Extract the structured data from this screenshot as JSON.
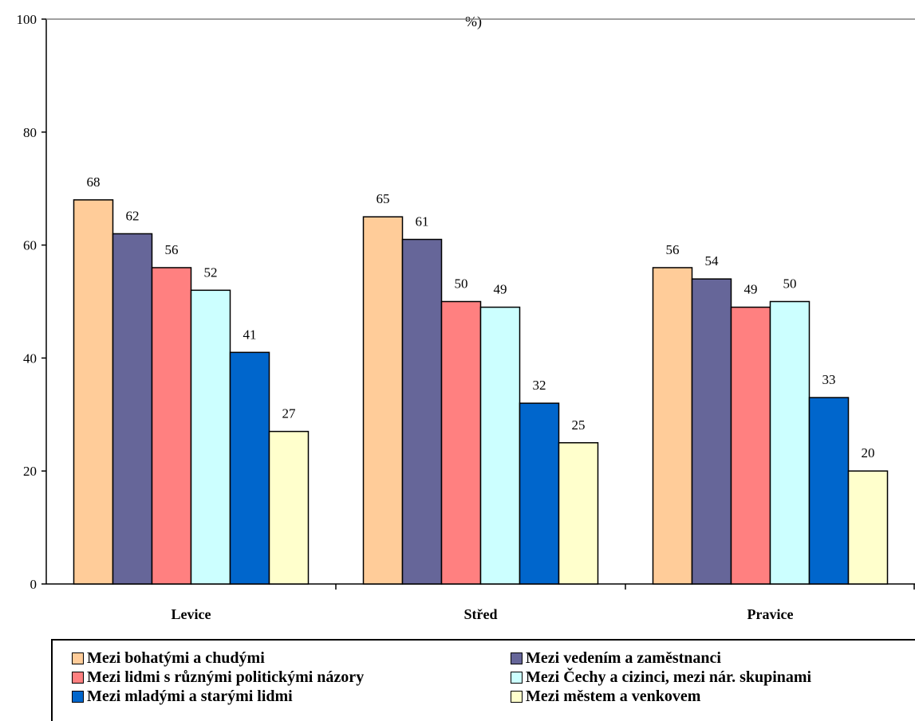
{
  "chart_data": {
    "type": "bar",
    "title": "%)",
    "categories": [
      "Levice",
      "Střed",
      "Pravice"
    ],
    "ylim": [
      0,
      100
    ],
    "yticks": [
      "0",
      "20",
      "40",
      "60",
      "80",
      "100"
    ],
    "grid": false,
    "legend_position": "bottom",
    "series": [
      {
        "name": "Mezi bohatými a chudými",
        "color": "#FFCC99",
        "values": [
          68,
          65,
          56
        ]
      },
      {
        "name": "Mezi vedením a zaměstnanci",
        "color": "#666699",
        "values": [
          62,
          61,
          54
        ]
      },
      {
        "name": "Mezi lidmi s různými politickými názory",
        "color": "#FF8080",
        "values": [
          56,
          50,
          49
        ]
      },
      {
        "name": "Mezi Čechy a cizinci, mezi nár. skupinami",
        "color": "#CCFFFF",
        "values": [
          52,
          49,
          50
        ]
      },
      {
        "name": "Mezi mladými a starými lidmi",
        "color": "#0066CC",
        "values": [
          41,
          32,
          33
        ]
      },
      {
        "name": "Mezi městem a venkovem",
        "color": "#FFFFCC",
        "values": [
          27,
          25,
          20
        ]
      }
    ]
  }
}
